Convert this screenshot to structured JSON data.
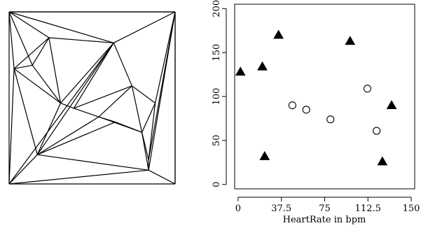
{
  "chart_data": [
    {
      "type": "diagram",
      "description_note": "",
      "points": [
        [
          0,
          0
        ],
        [
          100,
          0
        ],
        [
          100,
          100
        ],
        [
          0,
          100
        ],
        [
          24,
          85
        ],
        [
          63,
          82
        ],
        [
          14,
          69
        ],
        [
          3,
          67
        ],
        [
          74,
          57
        ],
        [
          31,
          47
        ],
        [
          39,
          44
        ],
        [
          88,
          47
        ],
        [
          54,
          39
        ],
        [
          80,
          30
        ],
        [
          17,
          17
        ],
        [
          84,
          14
        ],
        [
          84,
          8
        ],
        [
          64,
          36
        ]
      ],
      "edges": [
        [
          0,
          1
        ],
        [
          1,
          2
        ],
        [
          2,
          3
        ],
        [
          3,
          0
        ],
        [
          3,
          4
        ],
        [
          3,
          6
        ],
        [
          3,
          7
        ],
        [
          3,
          5
        ],
        [
          3,
          2
        ],
        [
          4,
          5
        ],
        [
          4,
          6
        ],
        [
          4,
          9
        ],
        [
          4,
          7
        ],
        [
          6,
          7
        ],
        [
          6,
          9
        ],
        [
          7,
          9
        ],
        [
          7,
          14
        ],
        [
          7,
          0
        ],
        [
          5,
          2
        ],
        [
          5,
          8
        ],
        [
          5,
          9
        ],
        [
          5,
          10
        ],
        [
          5,
          14
        ],
        [
          5,
          0
        ],
        [
          2,
          11
        ],
        [
          2,
          15
        ],
        [
          2,
          16
        ],
        [
          2,
          1
        ],
        [
          8,
          11
        ],
        [
          8,
          13
        ],
        [
          8,
          12
        ],
        [
          8,
          10
        ],
        [
          11,
          13
        ],
        [
          11,
          15
        ],
        [
          10,
          12
        ],
        [
          10,
          9
        ],
        [
          12,
          13
        ],
        [
          12,
          17
        ],
        [
          17,
          13
        ],
        [
          17,
          14
        ],
        [
          12,
          14
        ],
        [
          13,
          15
        ],
        [
          13,
          16
        ],
        [
          15,
          16
        ],
        [
          14,
          16
        ],
        [
          14,
          0
        ],
        [
          16,
          1
        ],
        [
          16,
          0
        ],
        [
          14,
          9
        ]
      ]
    },
    {
      "type": "scatter",
      "title": "",
      "xlabel": "HeartRate in bpm",
      "ylabel": "",
      "xlim": [
        -3,
        153
      ],
      "ylim": [
        -5,
        205
      ],
      "xticks": [
        "0",
        "37.5",
        "75",
        "112.5",
        "150"
      ],
      "xtick_values": [
        0,
        37.5,
        75,
        112.5,
        150
      ],
      "yticks": [
        "0",
        "50",
        "100",
        "150",
        "200"
      ],
      "ytick_values": [
        0,
        50,
        100,
        150,
        200
      ],
      "series": [
        {
          "marker": "triangle",
          "points": [
            [
              2,
              128
            ],
            [
              21,
              134
            ],
            [
              35,
              170
            ],
            [
              97,
              163
            ],
            [
              23,
              32
            ],
            [
              133,
              90
            ],
            [
              125,
              26
            ]
          ]
        },
        {
          "marker": "circle",
          "points": [
            [
              47,
              90
            ],
            [
              59,
              85
            ],
            [
              80,
              74
            ],
            [
              112,
              109
            ],
            [
              120,
              61
            ]
          ]
        }
      ]
    }
  ]
}
